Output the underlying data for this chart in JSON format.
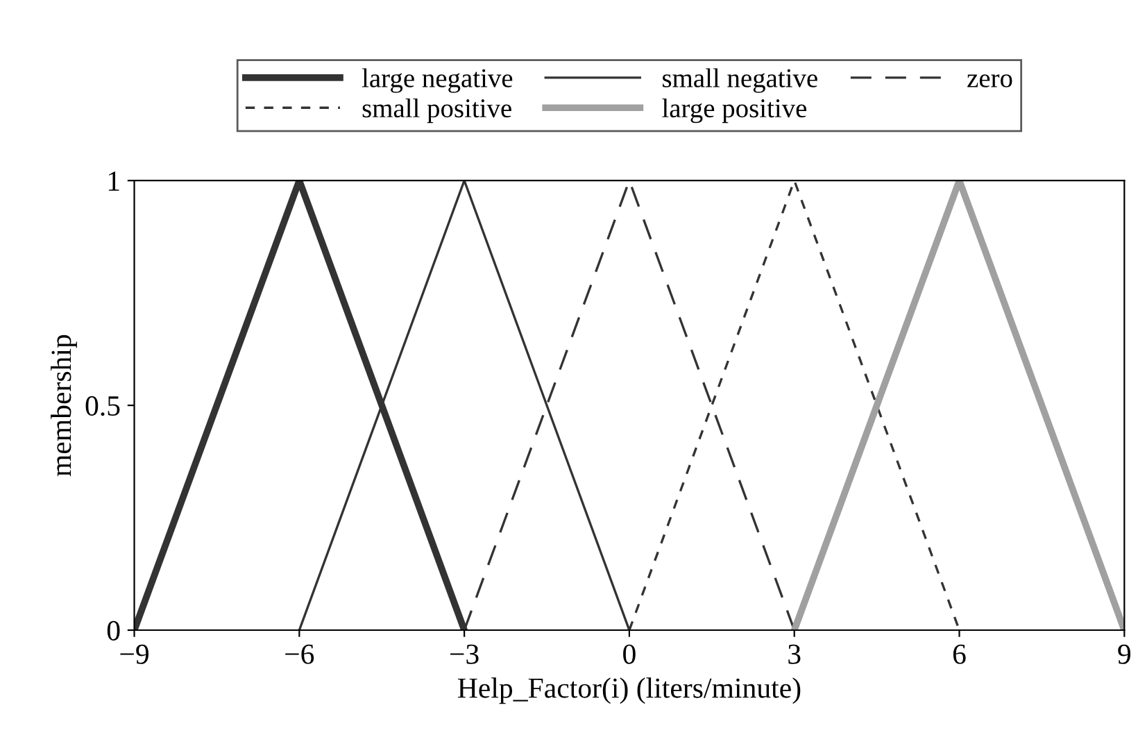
{
  "chart_data": {
    "type": "line",
    "xlabel": "Help_Factor(i) (liters/minute)",
    "ylabel": "membership",
    "xlim": [
      -9,
      9
    ],
    "xticks": [
      {
        "value": -9,
        "label": "−9"
      },
      {
        "value": -6,
        "label": "−6"
      },
      {
        "value": -3,
        "label": "−3"
      },
      0,
      3,
      6,
      9
    ],
    "ylim": [
      0,
      1
    ],
    "yticks": [
      0,
      0.5,
      1
    ],
    "grid": false,
    "legend": "top",
    "marker": "none",
    "series": [
      {
        "name": "large negative",
        "color": "#333333",
        "x": [
          -9,
          -6,
          -3
        ],
        "values": [
          0,
          1,
          0
        ],
        "line_style": "solid"
      },
      {
        "name": "small negative",
        "color": "#333333",
        "x": [
          -6,
          -3,
          0
        ],
        "values": [
          0,
          1,
          0
        ],
        "line_style": "solid"
      },
      {
        "name": "zero",
        "color": "#333333",
        "x": [
          -3,
          0,
          3
        ],
        "values": [
          0,
          1,
          0
        ],
        "line_style": "dashed"
      },
      {
        "name": "small positive",
        "color": "#333333",
        "x": [
          0,
          3,
          6
        ],
        "values": [
          0,
          1,
          0
        ],
        "line_style": "dotted"
      },
      {
        "name": "large positive",
        "color": "#a0a0a0",
        "x": [
          3,
          6,
          9
        ],
        "values": [
          0,
          1,
          0
        ],
        "line_style": "solid"
      }
    ]
  }
}
